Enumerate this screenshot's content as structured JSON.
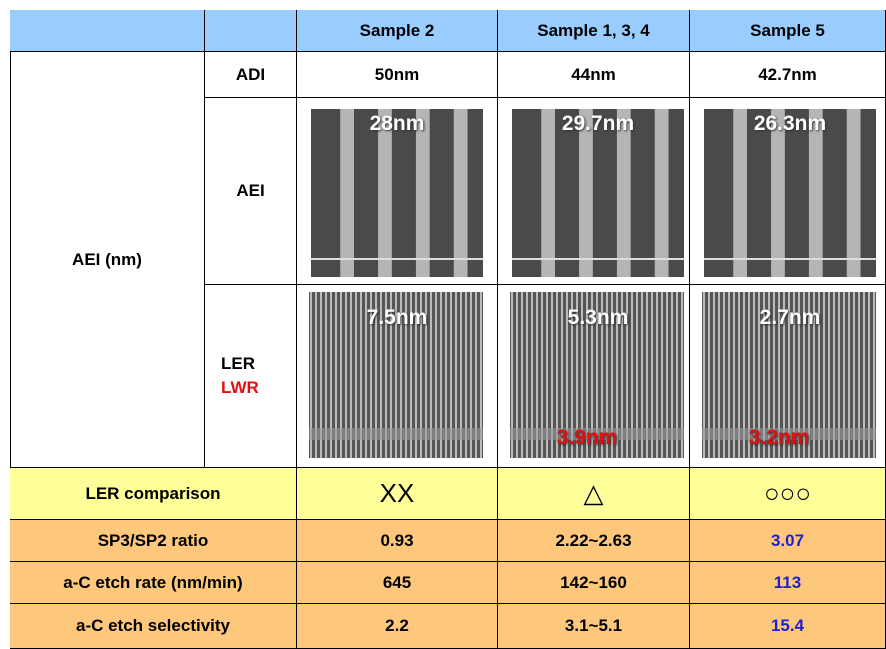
{
  "table": {
    "header": [
      "Sample 2",
      "Sample 1, 3, 4",
      "Sample 5"
    ],
    "group_label": "AEI (nm)",
    "adi": {
      "label": "ADI",
      "values": [
        "50nm",
        "44nm",
        "42.7nm"
      ]
    },
    "aei": {
      "label": "AEI",
      "images": [
        "28nm",
        "29.7nm",
        "26.3nm"
      ]
    },
    "ler": {
      "label": "LER",
      "label2": "LWR",
      "images": [
        {
          "ler": "7.5nm"
        },
        {
          "ler": "5.3nm",
          "lwr": "3.9nm"
        },
        {
          "ler": "2.7nm",
          "lwr": "3.2nm"
        }
      ]
    },
    "rows": [
      {
        "label": "LER comparison",
        "values": [
          "XX",
          "△",
          "○○○"
        ]
      },
      {
        "label": "SP3/SP2 ratio",
        "values": [
          "0.93",
          "2.22~2.63",
          "3.07"
        ]
      },
      {
        "label": "a-C etch rate (nm/min)",
        "values": [
          "645",
          "142~160",
          "113"
        ]
      },
      {
        "label": "a-C etch selectivity",
        "values": [
          "2.2",
          "3.1~5.1",
          "15.4"
        ]
      }
    ]
  }
}
